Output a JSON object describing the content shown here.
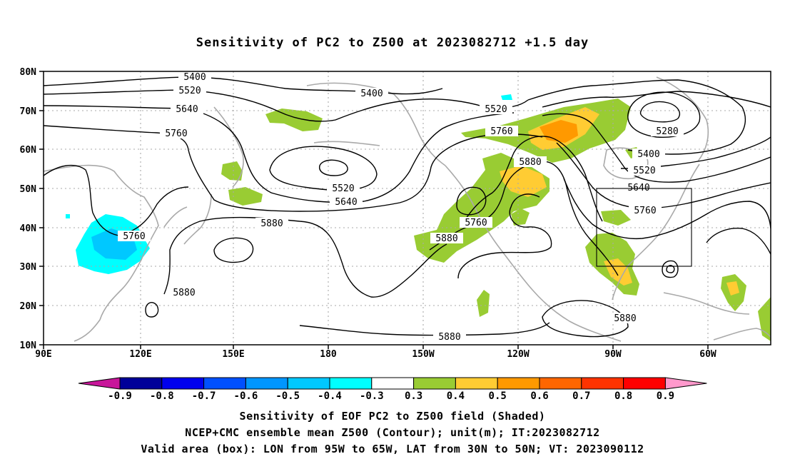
{
  "title": "Sensitivity of PC2 to Z500 at 2023082712 +1.5 day",
  "map": {
    "lat_ticks": [
      "80N",
      "70N",
      "60N",
      "50N",
      "40N",
      "30N",
      "20N",
      "10N"
    ],
    "lon_ticks": [
      "90E",
      "120E",
      "150E",
      "180",
      "150W",
      "120W",
      "90W",
      "60W"
    ],
    "contour_labels": [
      "5400",
      "5520",
      "5640",
      "5760",
      "5400",
      "5520",
      "5760",
      "5880",
      "5520",
      "5640",
      "5760",
      "5880",
      "5880",
      "5880",
      "5880",
      "5280",
      "5400",
      "5520",
      "5640",
      "5760",
      "5880",
      "5760"
    ],
    "valid_box": {
      "lon_from": "95W",
      "lon_to": "65W",
      "lat_from": "30N",
      "lat_to": "50N"
    }
  },
  "colorbar": {
    "labels": [
      "-0.9",
      "-0.8",
      "-0.7",
      "-0.6",
      "-0.5",
      "-0.4",
      "-0.3",
      "0.3",
      "0.4",
      "0.5",
      "0.6",
      "0.7",
      "0.8",
      "0.9"
    ],
    "colors": [
      "#c8169a",
      "#000099",
      "#0000ee",
      "#0050ff",
      "#0096ff",
      "#00c8ff",
      "#00ffff",
      "#ffffff",
      "#99cc33",
      "#ffcc33",
      "#ff9900",
      "#ff6600",
      "#ff3300",
      "#ff0000",
      "#ff99cc"
    ]
  },
  "captions": {
    "line1": "Sensitivity of EOF PC2 to Z500 field (Shaded)",
    "line2": "NCEP+CMC ensemble mean Z500 (Contour); unit(m); IT:2023082712",
    "line3": "Valid area (box): LON from 95W to 65W, LAT from 30N to 50N; VT: 2023090112"
  }
}
